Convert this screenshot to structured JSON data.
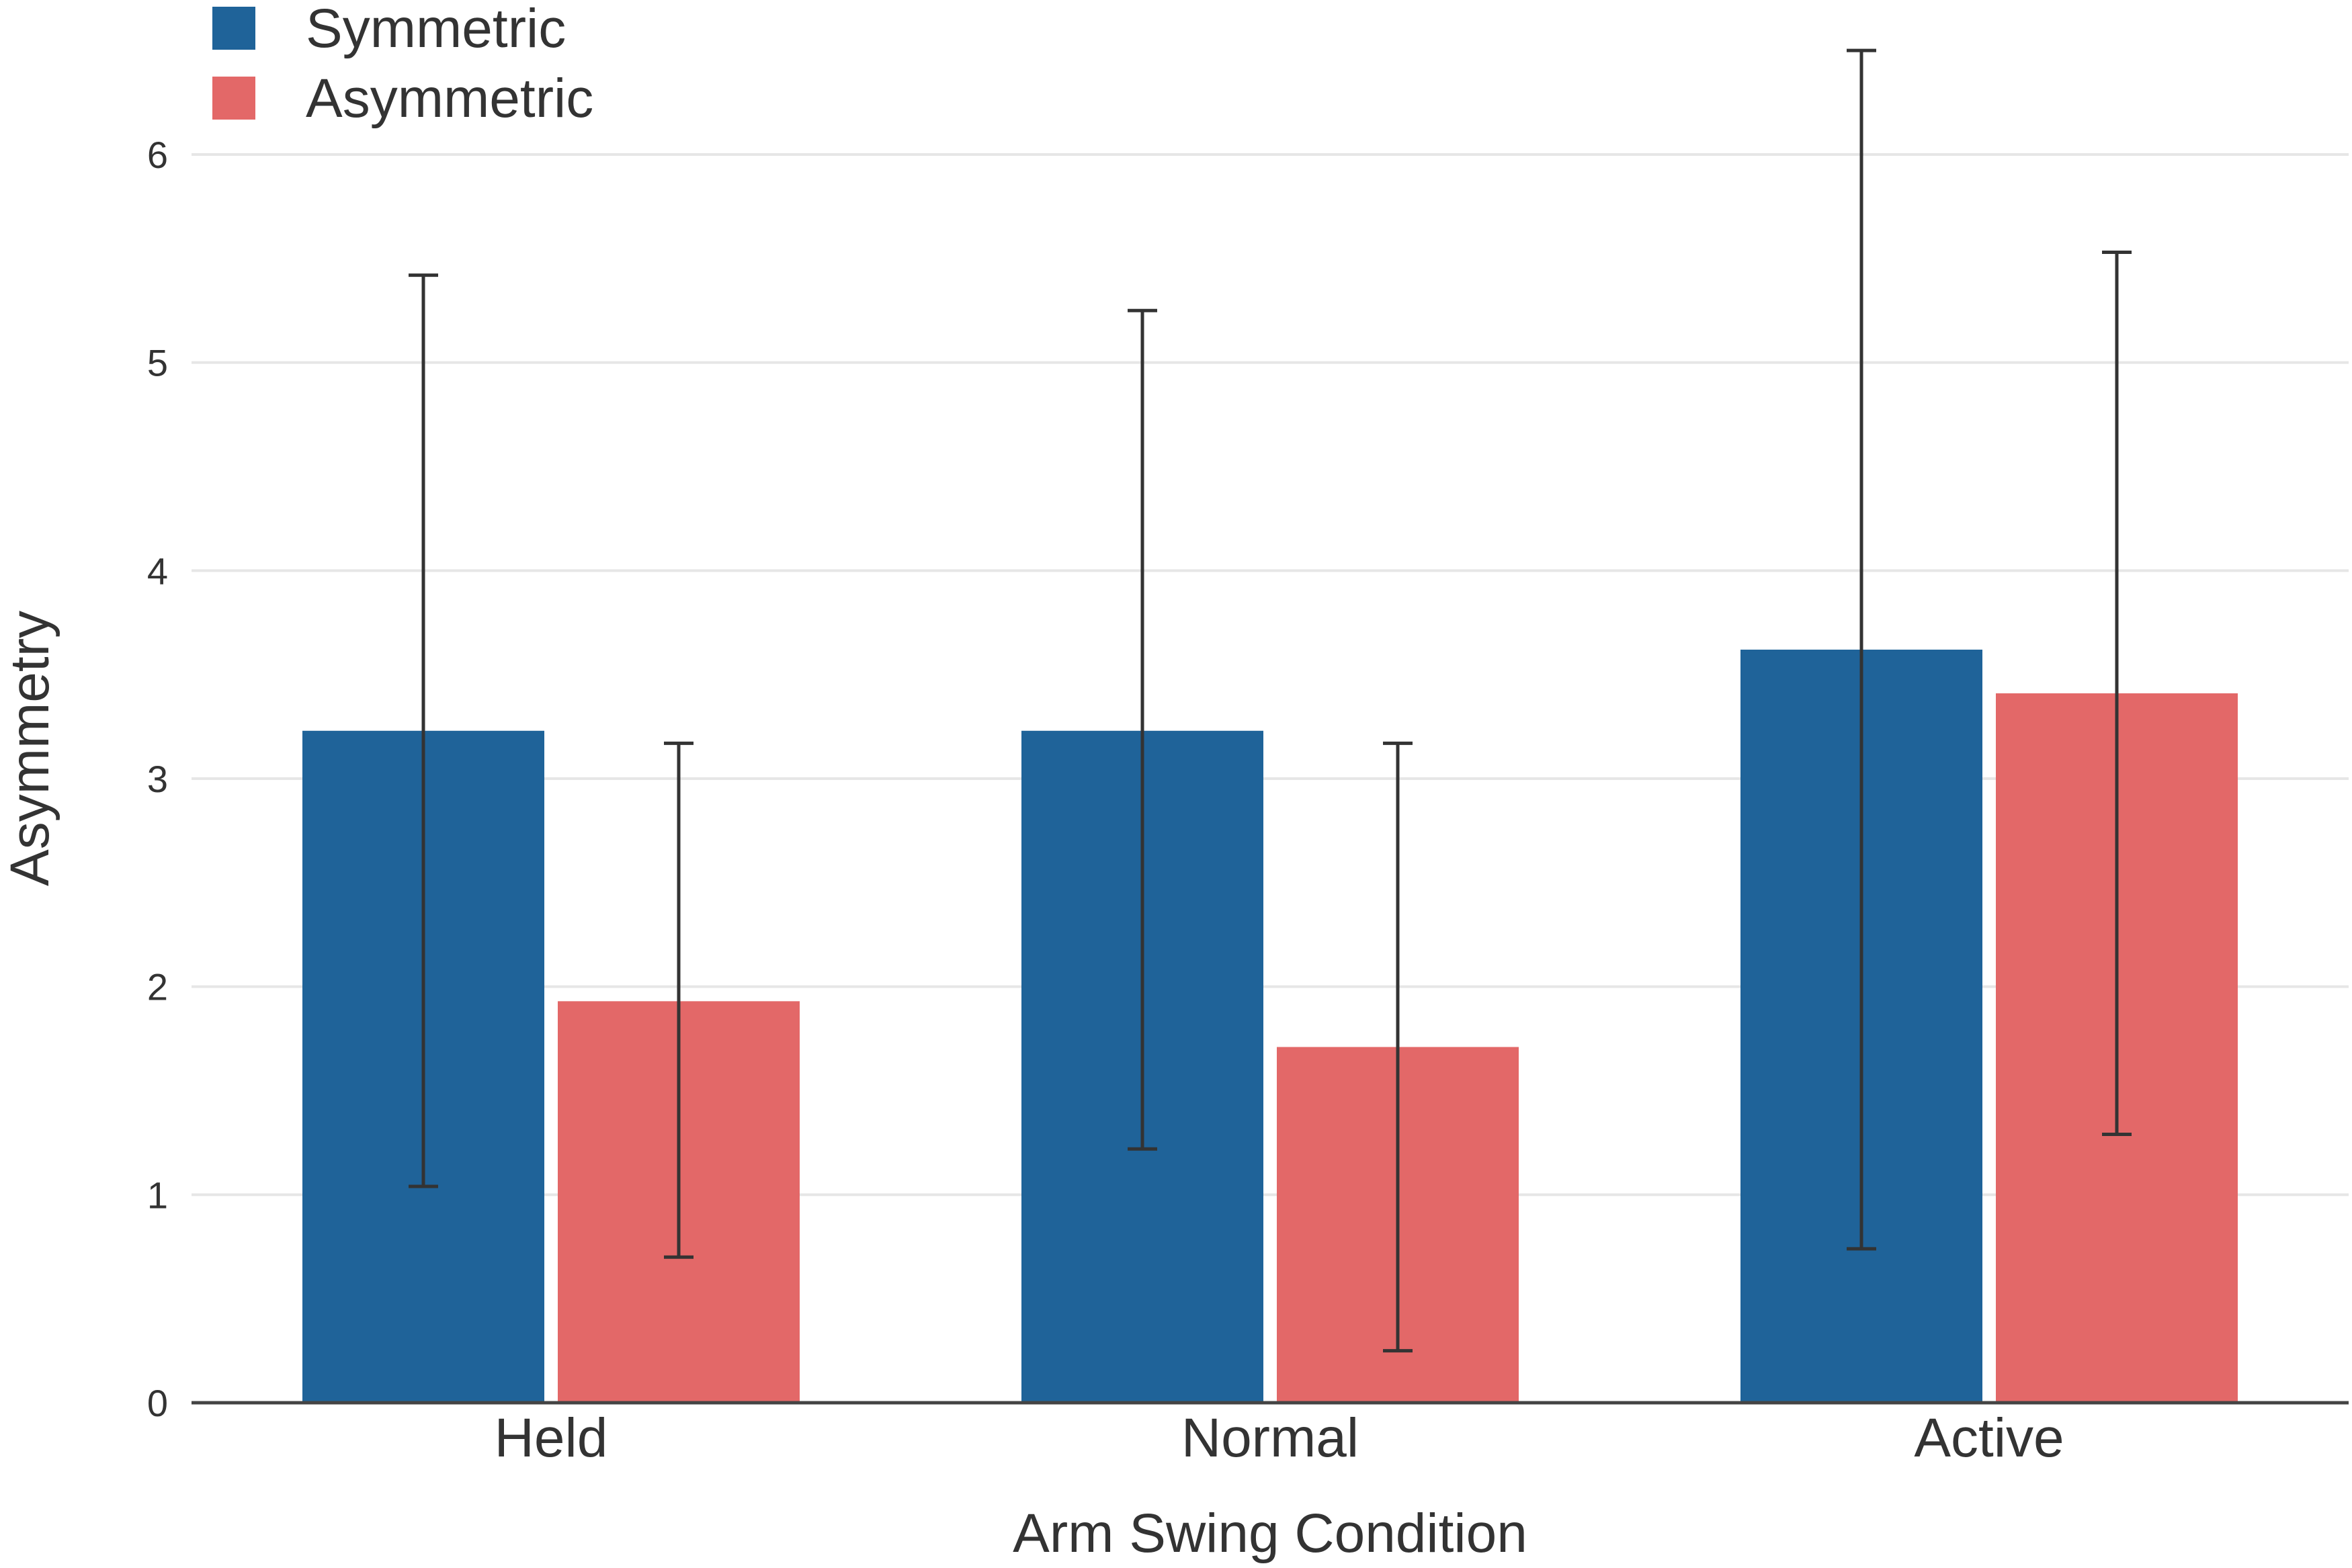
{
  "chart_data": {
    "type": "bar",
    "title": "",
    "xlabel": "Arm Swing Condition",
    "ylabel": "Asymmetry",
    "categories": [
      "Held",
      "Normal",
      "Active"
    ],
    "ylim": [
      0,
      6.5
    ],
    "yticks": [
      0,
      1,
      2,
      3,
      4,
      5,
      6
    ],
    "grid": true,
    "legend": "top-left",
    "series": [
      {
        "name": "Symmetric",
        "color": "#1f6399",
        "values": [
          3.23,
          3.23,
          3.62
        ],
        "error_low": [
          1.04,
          1.22,
          0.74
        ],
        "error_high": [
          5.42,
          5.25,
          6.5
        ]
      },
      {
        "name": "Asymmetric",
        "color": "#e36868",
        "values": [
          1.93,
          1.71,
          3.41
        ],
        "error_low": [
          0.7,
          0.25,
          1.29
        ],
        "error_high": [
          3.17,
          3.17,
          5.53
        ]
      }
    ]
  }
}
